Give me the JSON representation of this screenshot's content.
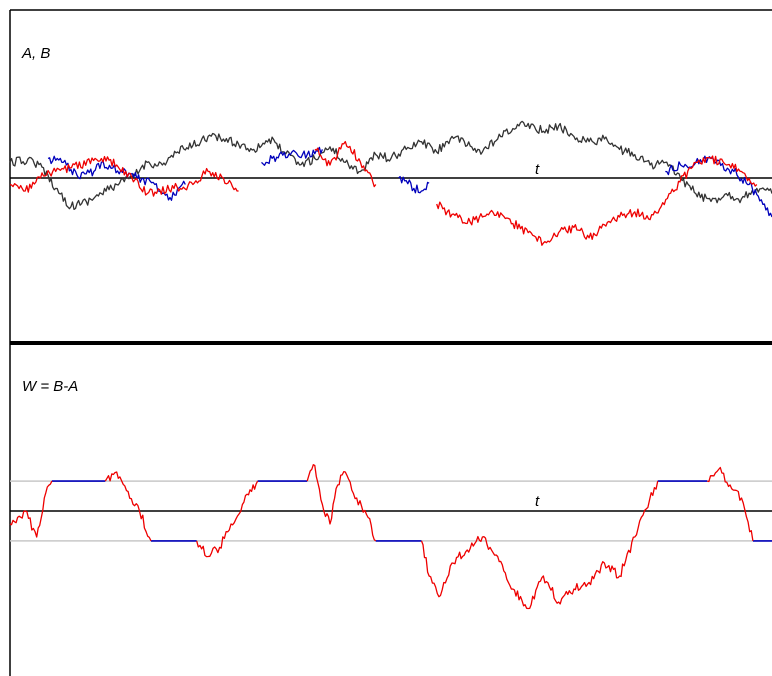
{
  "chart_data": [
    {
      "type": "line",
      "title": "A, B",
      "xlabel": "t",
      "ylabel": "",
      "x_range": [
        0,
        1
      ],
      "ylim": [
        -1,
        1
      ],
      "grid": false,
      "legend": "none",
      "series": [
        {
          "color": "#333333",
          "x": [
            0,
            0.03,
            0.05,
            0.06,
            0.08,
            0.1,
            0.12,
            0.14,
            0.16,
            0.18,
            0.2,
            0.22,
            0.24,
            0.26,
            0.28,
            0.3,
            0.32,
            0.34,
            0.36,
            0.38,
            0.4,
            0.42,
            0.44,
            0.46,
            0.48,
            0.5,
            0.52,
            0.54,
            0.56,
            0.58,
            0.6,
            0.62,
            0.64,
            0.66,
            0.68,
            0.7,
            0.72,
            0.74,
            0.76,
            0.78,
            0.8,
            0.82,
            0.84,
            0.86,
            0.88,
            0.9,
            0.92,
            0.94,
            0.96,
            0.98,
            1.0
          ],
          "y": [
            0.12,
            0.14,
            0.02,
            -0.08,
            -0.22,
            -0.18,
            -0.12,
            -0.05,
            0.0,
            0.12,
            0.1,
            0.2,
            0.25,
            0.32,
            0.3,
            0.26,
            0.22,
            0.3,
            0.2,
            0.1,
            0.15,
            0.24,
            0.12,
            0.05,
            0.18,
            0.15,
            0.22,
            0.28,
            0.2,
            0.32,
            0.25,
            0.2,
            0.3,
            0.38,
            0.42,
            0.36,
            0.4,
            0.32,
            0.28,
            0.3,
            0.22,
            0.18,
            0.1,
            0.12,
            0.0,
            -0.12,
            -0.18,
            -0.12,
            -0.16,
            -0.08,
            -0.12
          ]
        },
        {
          "color": "#0000bb",
          "x": [
            0.05,
            0.07,
            0.09,
            0.11,
            0.12,
            0.19,
            0.2,
            0.21,
            0.23,
            0.33,
            0.35,
            0.37,
            0.39,
            0.41,
            0.51,
            0.52,
            0.53,
            0.54,
            0.55,
            0.86,
            0.88,
            0.9,
            0.92,
            0.95,
            0.97,
            0.99,
            1.0
          ],
          "y": [
            0.15,
            0.12,
            0.0,
            0.05,
            0.12,
            -0.05,
            -0.12,
            -0.15,
            -0.05,
            0.12,
            0.16,
            0.2,
            0.18,
            0.22,
            0.0,
            -0.02,
            -0.08,
            -0.1,
            -0.04,
            0.05,
            0.1,
            0.12,
            0.15,
            0.05,
            -0.05,
            -0.2,
            -0.3
          ]
        },
        {
          "color": "#ee0000",
          "x": [
            0,
            0.02,
            0.04,
            0.06,
            0.12,
            0.14,
            0.16,
            0.18,
            0.24,
            0.26,
            0.28,
            0.3,
            0.4,
            0.42,
            0.44,
            0.46,
            0.48,
            0.56,
            0.58,
            0.6,
            0.62,
            0.64,
            0.66,
            0.68,
            0.7,
            0.72,
            0.74,
            0.76,
            0.78,
            0.8,
            0.82,
            0.84,
            0.9,
            0.92,
            0.94,
            0.96,
            0.98
          ],
          "y": [
            -0.05,
            -0.1,
            0.0,
            0.05,
            0.15,
            0.1,
            0.0,
            -0.12,
            -0.05,
            0.05,
            0.0,
            -0.1,
            0.22,
            0.1,
            0.28,
            0.12,
            -0.05,
            -0.2,
            -0.28,
            -0.35,
            -0.3,
            -0.26,
            -0.35,
            -0.42,
            -0.5,
            -0.42,
            -0.38,
            -0.46,
            -0.36,
            -0.3,
            -0.26,
            -0.32,
            0.12,
            0.15,
            0.1,
            0.05,
            -0.05
          ]
        }
      ]
    },
    {
      "type": "line",
      "title": "W = B-A",
      "xlabel": "t",
      "ylabel": "",
      "x_range": [
        0,
        1
      ],
      "ylim": [
        -1,
        1
      ],
      "reference_levels": [
        0.23,
        -0.23
      ],
      "grid": false,
      "legend": "none",
      "series": [
        {
          "color": "#0000bb",
          "x": [
            0.055,
            0.125,
            0.185,
            0.245,
            0.325,
            0.39,
            0.48,
            0.54,
            0.85,
            0.915,
            0.975,
            1.0
          ],
          "y": [
            0.23,
            0.23,
            -0.23,
            -0.23,
            0.23,
            0.23,
            -0.23,
            -0.23,
            0.23,
            0.23,
            -0.23,
            -0.23
          ]
        },
        {
          "color": "#ee0000",
          "x": [
            0,
            0.02,
            0.035,
            0.045,
            0.055,
            0.125,
            0.14,
            0.155,
            0.17,
            0.185,
            0.245,
            0.26,
            0.275,
            0.29,
            0.305,
            0.325,
            0.39,
            0.4,
            0.41,
            0.42,
            0.43,
            0.44,
            0.455,
            0.47,
            0.48,
            0.54,
            0.55,
            0.565,
            0.58,
            0.6,
            0.62,
            0.64,
            0.66,
            0.68,
            0.7,
            0.72,
            0.74,
            0.76,
            0.78,
            0.8,
            0.82,
            0.85,
            0.915,
            0.93,
            0.945,
            0.96,
            0.975
          ],
          "y": [
            -0.1,
            0.0,
            -0.2,
            0.1,
            0.23,
            0.23,
            0.3,
            0.15,
            0.0,
            -0.23,
            -0.23,
            -0.35,
            -0.28,
            -0.1,
            0.05,
            0.23,
            0.23,
            0.35,
            0.05,
            -0.1,
            0.2,
            0.3,
            0.1,
            -0.05,
            -0.23,
            -0.23,
            -0.5,
            -0.65,
            -0.4,
            -0.3,
            -0.2,
            -0.35,
            -0.6,
            -0.75,
            -0.5,
            -0.7,
            -0.6,
            -0.55,
            -0.4,
            -0.5,
            -0.2,
            0.23,
            0.23,
            0.32,
            0.2,
            0.1,
            -0.23
          ]
        }
      ]
    }
  ]
}
